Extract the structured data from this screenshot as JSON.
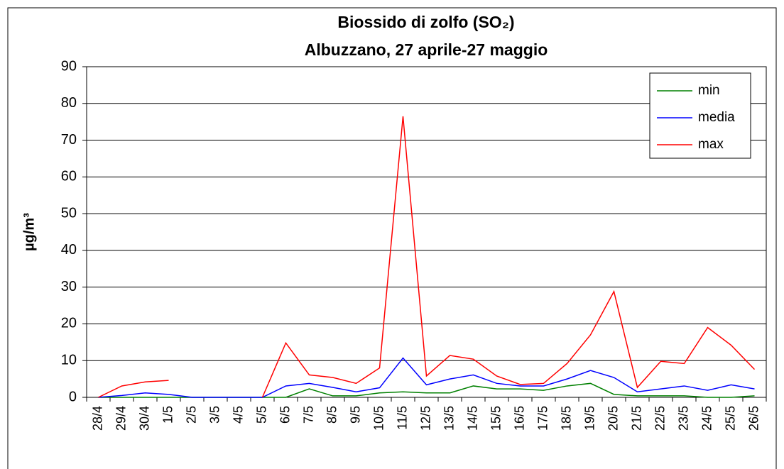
{
  "chart_data": {
    "type": "line",
    "title": "Biossido di zolfo (SO₂)",
    "subtitle": "Albuzzano, 27 aprile-27 maggio",
    "y_label": "µg/m³",
    "categories": [
      "28/4",
      "29/4",
      "30/4",
      "1/5",
      "2/5",
      "3/5",
      "4/5",
      "5/5",
      "6/5",
      "7/5",
      "8/5",
      "9/5",
      "10/5",
      "11/5",
      "12/5",
      "13/5",
      "14/5",
      "15/5",
      "16/5",
      "17/5",
      "18/5",
      "19/5",
      "20/5",
      "21/5",
      "22/5",
      "23/5",
      "24/5",
      "25/5",
      "26/5"
    ],
    "series": [
      {
        "name": "min",
        "color": "#008000",
        "values": [
          0,
          0,
          0,
          0,
          0,
          0,
          0,
          0,
          0,
          2.3,
          0.4,
          0.4,
          1.2,
          1.5,
          1.2,
          1.2,
          3.1,
          2.3,
          2.3,
          1.9,
          3.1,
          3.8,
          0.8,
          0.4,
          0.4,
          0.4,
          0,
          0,
          0.4
        ]
      },
      {
        "name": "media",
        "color": "#0000ff",
        "values": [
          0,
          0.5,
          1.2,
          0.8,
          0,
          0,
          0,
          0,
          3.1,
          3.8,
          2.7,
          1.5,
          2.6,
          10.7,
          3.4,
          5.0,
          6.1,
          3.8,
          3.1,
          3.1,
          5.0,
          7.3,
          5.4,
          1.5,
          2.3,
          3.1,
          1.9,
          3.4,
          2.3
        ]
      },
      {
        "name": "max",
        "color": "#ff0000",
        "values": [
          0,
          3.1,
          4.2,
          4.6,
          null,
          null,
          null,
          0,
          14.8,
          6.1,
          5.4,
          3.8,
          8.0,
          76.5,
          5.8,
          11.4,
          10.4,
          5.8,
          3.5,
          3.8,
          9.2,
          17.0,
          28.8,
          2.7,
          9.8,
          9.2,
          19.0,
          14.2,
          7.6
        ]
      }
    ],
    "ylim": [
      0,
      90
    ],
    "yticks": [
      0,
      10,
      20,
      30,
      40,
      50,
      60,
      70,
      80,
      90
    ],
    "grid": true,
    "legend": "top-right"
  }
}
